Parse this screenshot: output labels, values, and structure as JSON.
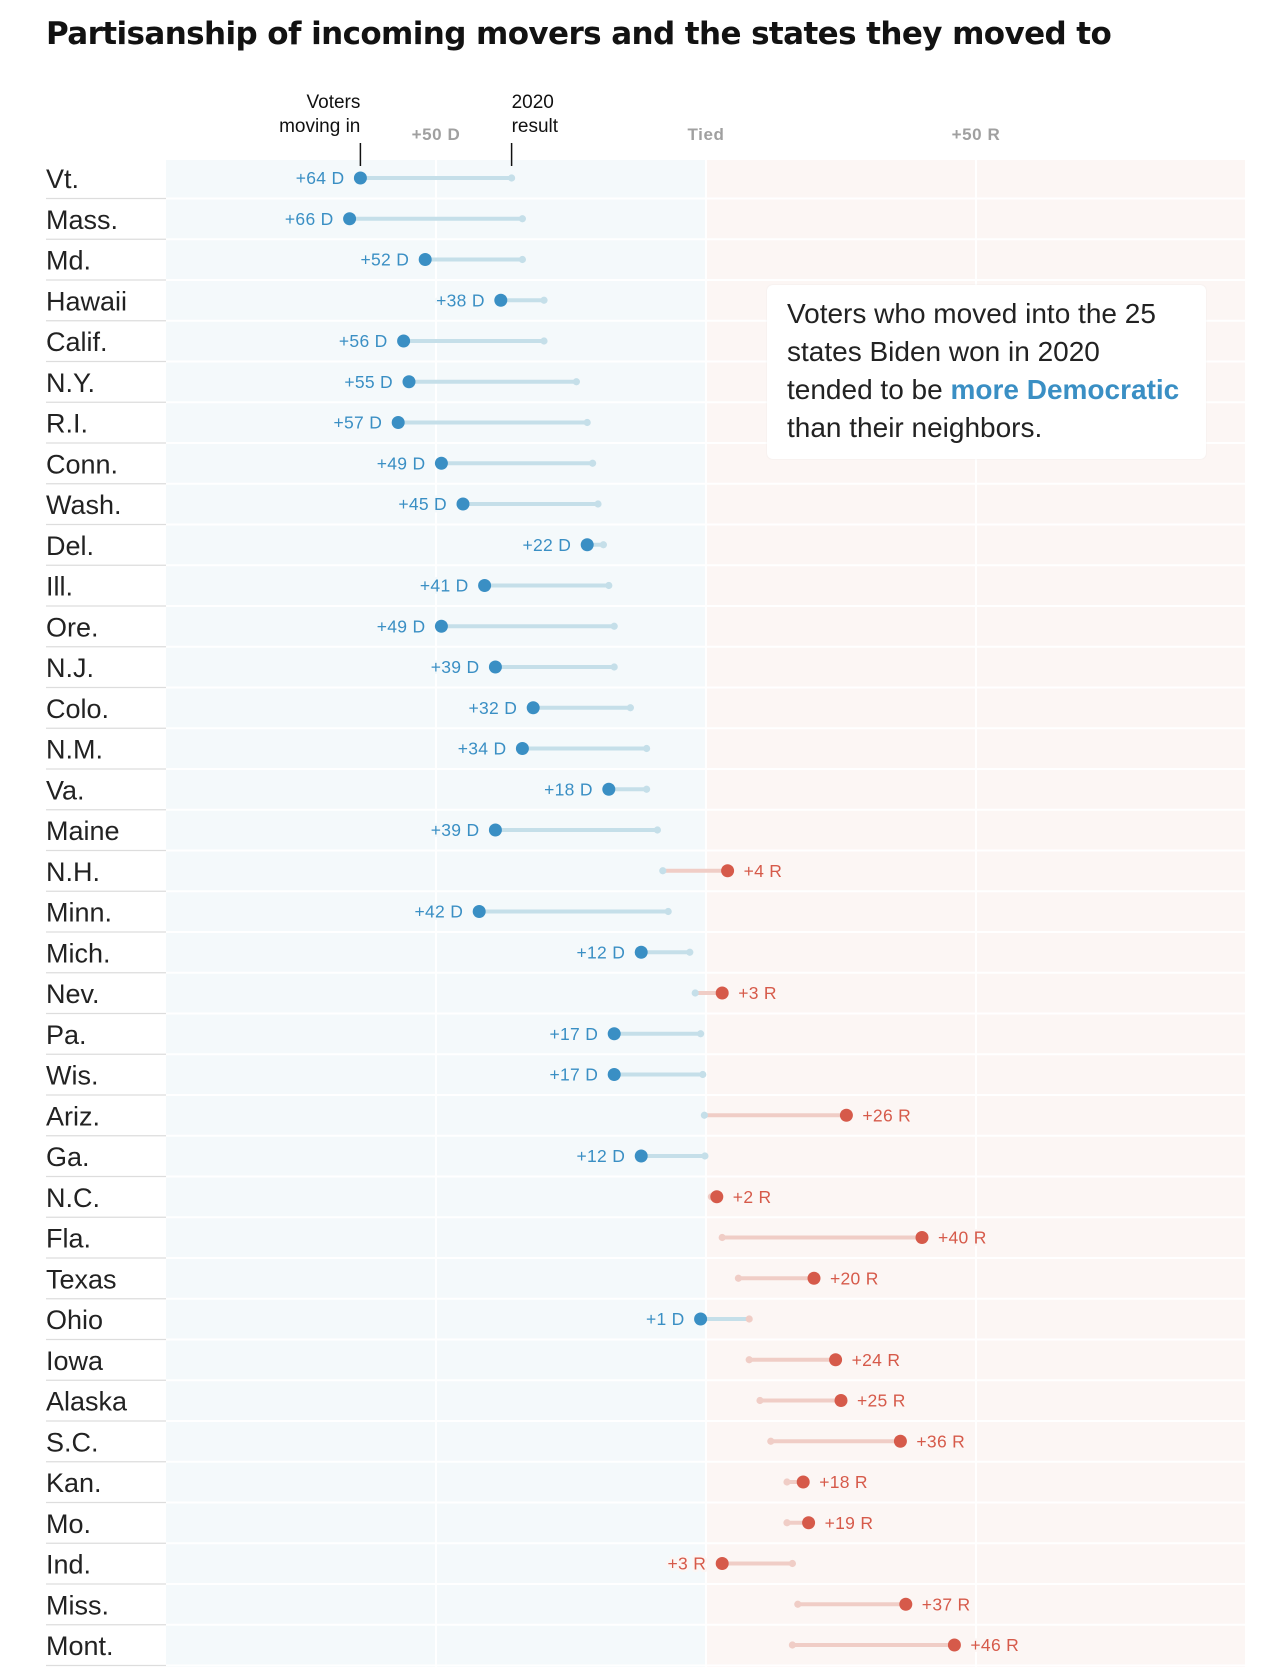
{
  "title": "Partisanship of incoming movers and the states they moved to",
  "annotation": {
    "before": "Voters who moved into the 25 states Biden won in 2020 tended to be ",
    "highlight": "more Democratic",
    "after": " than their neighbors."
  },
  "legend": {
    "movers_label_line1": "Voters",
    "movers_label_line2": "moving in",
    "result_label_line1": "2020",
    "result_label_line2": "result"
  },
  "colors": {
    "dem": "#3a8fc4",
    "dem_line": "#c5dfe9",
    "rep": "#d65a4a",
    "rep_line": "#f0cdc6",
    "dem_bg": "#f4f9fb",
    "rep_bg": "#fcf6f4"
  },
  "chart_data": {
    "type": "dot",
    "title": "Partisanship of incoming movers and the states they moved to",
    "x_axis": {
      "ticks": [
        -50,
        0,
        50
      ],
      "tick_labels": [
        "+50 D",
        "Tied",
        "+50 R"
      ],
      "range": [
        -100,
        100
      ]
    },
    "series": [
      {
        "name": "Voters moving in"
      },
      {
        "name": "2020 result"
      }
    ],
    "rows": [
      {
        "state": "Vt.",
        "movers": -64,
        "result": -36,
        "label": "+64 D"
      },
      {
        "state": "Mass.",
        "movers": -66,
        "result": -34,
        "label": "+66 D"
      },
      {
        "state": "Md.",
        "movers": -52,
        "result": -34,
        "label": "+52 D"
      },
      {
        "state": "Hawaii",
        "movers": -38,
        "result": -30,
        "label": "+38 D"
      },
      {
        "state": "Calif.",
        "movers": -56,
        "result": -30,
        "label": "+56 D"
      },
      {
        "state": "N.Y.",
        "movers": -55,
        "result": -24,
        "label": "+55 D"
      },
      {
        "state": "R.I.",
        "movers": -57,
        "result": -22,
        "label": "+57 D"
      },
      {
        "state": "Conn.",
        "movers": -49,
        "result": -21,
        "label": "+49 D"
      },
      {
        "state": "Wash.",
        "movers": -45,
        "result": -20,
        "label": "+45 D"
      },
      {
        "state": "Del.",
        "movers": -22,
        "result": -19,
        "label": "+22 D"
      },
      {
        "state": "Ill.",
        "movers": -41,
        "result": -18,
        "label": "+41 D"
      },
      {
        "state": "Ore.",
        "movers": -49,
        "result": -17,
        "label": "+49 D"
      },
      {
        "state": "N.J.",
        "movers": -39,
        "result": -17,
        "label": "+39 D"
      },
      {
        "state": "Colo.",
        "movers": -32,
        "result": -14,
        "label": "+32 D"
      },
      {
        "state": "N.M.",
        "movers": -34,
        "result": -11,
        "label": "+34 D"
      },
      {
        "state": "Va.",
        "movers": -18,
        "result": -11,
        "label": "+18 D"
      },
      {
        "state": "Maine",
        "movers": -39,
        "result": -9,
        "label": "+39 D"
      },
      {
        "state": "N.H.",
        "movers": 4,
        "result": -8,
        "label": "+4 R"
      },
      {
        "state": "Minn.",
        "movers": -42,
        "result": -7,
        "label": "+42 D"
      },
      {
        "state": "Mich.",
        "movers": -12,
        "result": -3,
        "label": "+12 D"
      },
      {
        "state": "Nev.",
        "movers": 3,
        "result": -2,
        "label": "+3 R"
      },
      {
        "state": "Pa.",
        "movers": -17,
        "result": -1,
        "label": "+17 D"
      },
      {
        "state": "Wis.",
        "movers": -17,
        "result": -0.6,
        "label": "+17 D"
      },
      {
        "state": "Ariz.",
        "movers": 26,
        "result": -0.3,
        "label": "+26 R"
      },
      {
        "state": "Ga.",
        "movers": -12,
        "result": -0.2,
        "label": "+12 D"
      },
      {
        "state": "N.C.",
        "movers": 2,
        "result": 1,
        "label": "+2 R"
      },
      {
        "state": "Fla.",
        "movers": 40,
        "result": 3,
        "label": "+40 R"
      },
      {
        "state": "Texas",
        "movers": 20,
        "result": 6,
        "label": "+20 R"
      },
      {
        "state": "Ohio",
        "movers": -1,
        "result": 8,
        "label": "+1 D"
      },
      {
        "state": "Iowa",
        "movers": 24,
        "result": 8,
        "label": "+24 R"
      },
      {
        "state": "Alaska",
        "movers": 25,
        "result": 10,
        "label": "+25 R"
      },
      {
        "state": "S.C.",
        "movers": 36,
        "result": 12,
        "label": "+36 R"
      },
      {
        "state": "Kan.",
        "movers": 18,
        "result": 15,
        "label": "+18 R"
      },
      {
        "state": "Mo.",
        "movers": 19,
        "result": 15,
        "label": "+19 R"
      },
      {
        "state": "Ind.",
        "movers": 3,
        "result": 16,
        "label": "+3 R"
      },
      {
        "state": "Miss.",
        "movers": 37,
        "result": 17,
        "label": "+37 R"
      },
      {
        "state": "Mont.",
        "movers": 46,
        "result": 16,
        "label": "+46 R"
      }
    ]
  }
}
